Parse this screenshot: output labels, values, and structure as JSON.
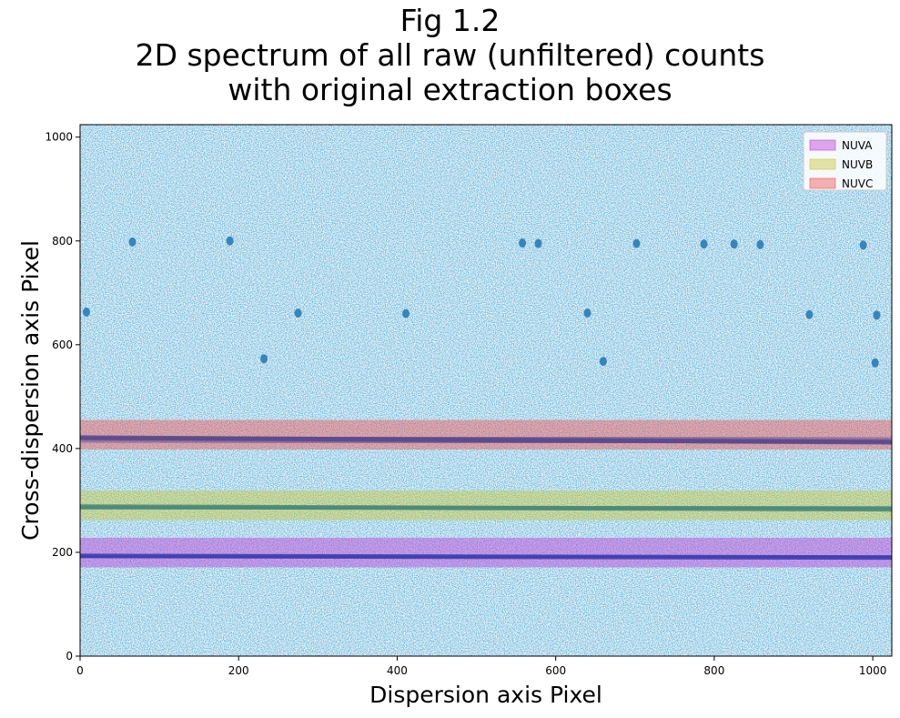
{
  "chart_data": {
    "type": "heatmap",
    "title_lines": [
      "Fig 1.2",
      "2D spectrum of all raw (unfiltered) counts",
      "with original extraction boxes"
    ],
    "xlabel": "Dispersion axis Pixel",
    "ylabel": "Cross-dispersion axis Pixel",
    "xlim": [
      0,
      1024
    ],
    "ylim": [
      0,
      1024
    ],
    "xticks": [
      0,
      200,
      400,
      600,
      800,
      1000
    ],
    "yticks": [
      0,
      200,
      400,
      600,
      800,
      1000
    ],
    "grid": false,
    "legend_position": "top-right",
    "background_color": "#dbe8f3",
    "count_color": "#1f77b4",
    "extraction_boxes": [
      {
        "name": "NUVA",
        "y_min": 171,
        "y_max": 228,
        "color": "#bf3fd9"
      },
      {
        "name": "NUVB",
        "y_min": 262,
        "y_max": 319,
        "color": "#c8c83a"
      },
      {
        "name": "NUVC",
        "y_min": 398,
        "y_max": 455,
        "color": "#f25555"
      }
    ],
    "spectral_traces": [
      {
        "y_start": 193,
        "y_end": 190,
        "color": "#3d3fb0"
      },
      {
        "y_start": 288,
        "y_end": 283,
        "color": "#4a8a7a"
      },
      {
        "y_start": 421,
        "y_end": 412,
        "color": "#5a4a8e"
      }
    ],
    "hot_spots": [
      {
        "x": 66,
        "y": 798
      },
      {
        "x": 189,
        "y": 800
      },
      {
        "x": 558,
        "y": 796
      },
      {
        "x": 578,
        "y": 795
      },
      {
        "x": 702,
        "y": 795
      },
      {
        "x": 787,
        "y": 794
      },
      {
        "x": 825,
        "y": 794
      },
      {
        "x": 858,
        "y": 793
      },
      {
        "x": 988,
        "y": 792
      },
      {
        "x": 8,
        "y": 663
      },
      {
        "x": 275,
        "y": 661
      },
      {
        "x": 411,
        "y": 660
      },
      {
        "x": 640,
        "y": 661
      },
      {
        "x": 660,
        "y": 568
      },
      {
        "x": 920,
        "y": 658
      },
      {
        "x": 1005,
        "y": 657
      },
      {
        "x": 1003,
        "y": 565
      },
      {
        "x": 232,
        "y": 573
      }
    ]
  }
}
